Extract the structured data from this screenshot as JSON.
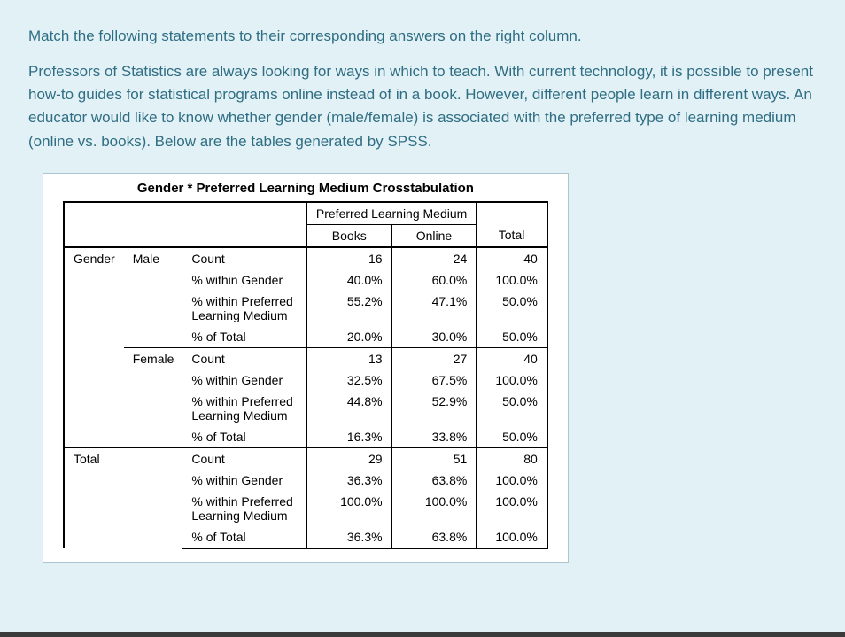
{
  "colors": {
    "page_bg": "#e2f1f6",
    "text_teal": "#2f6e83",
    "table_border": "#000000",
    "table_bg": "#ffffff",
    "outer_border": "#a9c6cf"
  },
  "intro": {
    "line1": "Match the following statements to their corresponding answers on the right column.",
    "line2": "Professors of Statistics are always looking for ways in which to teach. With current technology, it is possible to present how-to guides for statistical programs online instead of in a book. However, different people learn in different ways. An educator would like to know whether gender (male/female) is associated with the preferred type of learning medium (online vs. books). Below are the tables generated by SPSS."
  },
  "table": {
    "title": "Gender * Preferred Learning Medium Crosstabulation",
    "header": {
      "plm": "Preferred Learning Medium",
      "books": "Books",
      "online": "Online",
      "total": "Total"
    },
    "stubs": {
      "gender": "Gender",
      "male": "Male",
      "female": "Female",
      "total": "Total",
      "count": "Count",
      "pct_gender": "% within Gender",
      "pct_plm_l1": "% within Preferred",
      "pct_plm_l2": "Learning Medium",
      "pct_total": "% of Total"
    },
    "data": {
      "male": {
        "count": {
          "books": "16",
          "online": "24",
          "total": "40"
        },
        "pct_gender": {
          "books": "40.0%",
          "online": "60.0%",
          "total": "100.0%"
        },
        "pct_plm": {
          "books": "55.2%",
          "online": "47.1%",
          "total": "50.0%"
        },
        "pct_total": {
          "books": "20.0%",
          "online": "30.0%",
          "total": "50.0%"
        }
      },
      "female": {
        "count": {
          "books": "13",
          "online": "27",
          "total": "40"
        },
        "pct_gender": {
          "books": "32.5%",
          "online": "67.5%",
          "total": "100.0%"
        },
        "pct_plm": {
          "books": "44.8%",
          "online": "52.9%",
          "total": "50.0%"
        },
        "pct_total": {
          "books": "16.3%",
          "online": "33.8%",
          "total": "50.0%"
        }
      },
      "total": {
        "count": {
          "books": "29",
          "online": "51",
          "total": "80"
        },
        "pct_gender": {
          "books": "36.3%",
          "online": "63.8%",
          "total": "100.0%"
        },
        "pct_plm": {
          "books": "100.0%",
          "online": "100.0%",
          "total": "100.0%"
        },
        "pct_total": {
          "books": "36.3%",
          "online": "63.8%",
          "total": "100.0%"
        }
      }
    }
  }
}
